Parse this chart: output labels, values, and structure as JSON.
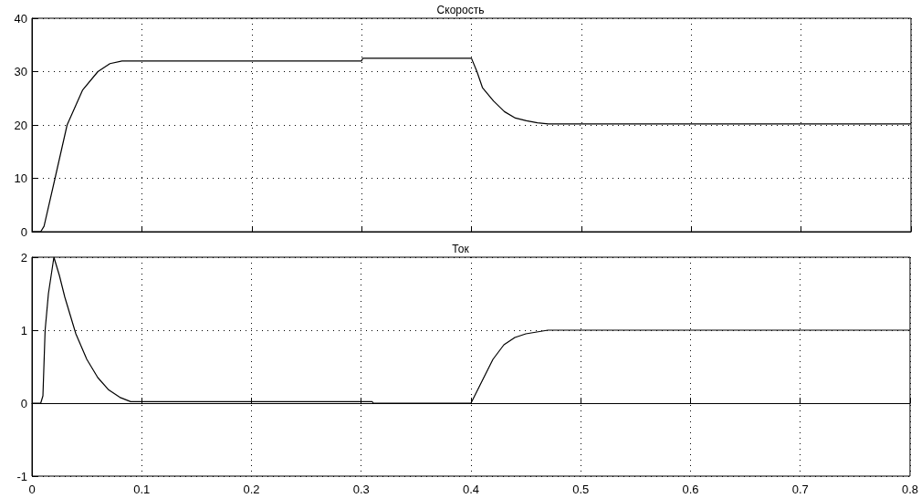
{
  "chart_data": [
    {
      "type": "line",
      "title": "Скорость",
      "x": [
        0,
        0.008,
        0.011,
        0.021,
        0.032,
        0.046,
        0.06,
        0.071,
        0.082,
        0.09,
        0.3,
        0.301,
        0.4,
        0.405,
        0.41,
        0.42,
        0.43,
        0.44,
        0.45,
        0.46,
        0.47,
        0.8
      ],
      "values": [
        0,
        0,
        1,
        10,
        20,
        26.5,
        30,
        31.5,
        32,
        32,
        32,
        32.5,
        32.5,
        30,
        27,
        24.5,
        22.5,
        21.3,
        20.8,
        20.4,
        20.2,
        20.2
      ],
      "color": "#000000",
      "xlim": [
        0,
        0.8
      ],
      "xticks": [
        0,
        0.1,
        0.2,
        0.3,
        0.4,
        0.5,
        0.6,
        0.7,
        0.8
      ],
      "ylim": [
        0,
        40
      ],
      "yticks": [
        0,
        10,
        20,
        30,
        40
      ],
      "grid": true,
      "tick_labels": "y"
    },
    {
      "type": "line",
      "title": "Ток",
      "x": [
        0,
        0.008,
        0.01,
        0.012,
        0.015,
        0.02,
        0.025,
        0.03,
        0.035,
        0.04,
        0.05,
        0.06,
        0.07,
        0.08,
        0.09,
        0.1,
        0.31,
        0.311,
        0.4,
        0.41,
        0.42,
        0.43,
        0.44,
        0.45,
        0.47,
        0.8
      ],
      "values": [
        0,
        0,
        0.1,
        1,
        1.5,
        2,
        1.75,
        1.45,
        1.2,
        0.95,
        0.6,
        0.35,
        0.18,
        0.08,
        0.02,
        0.02,
        0.02,
        0,
        0,
        0.3,
        0.6,
        0.8,
        0.9,
        0.95,
        1,
        1
      ],
      "color": "#000000",
      "xlim": [
        0,
        0.8
      ],
      "xticks": [
        0,
        0.1,
        0.2,
        0.3,
        0.4,
        0.5,
        0.6,
        0.7,
        0.8
      ],
      "ylim": [
        -1,
        2
      ],
      "yticks": [
        -1,
        0,
        1,
        2
      ],
      "grid": true
    }
  ]
}
